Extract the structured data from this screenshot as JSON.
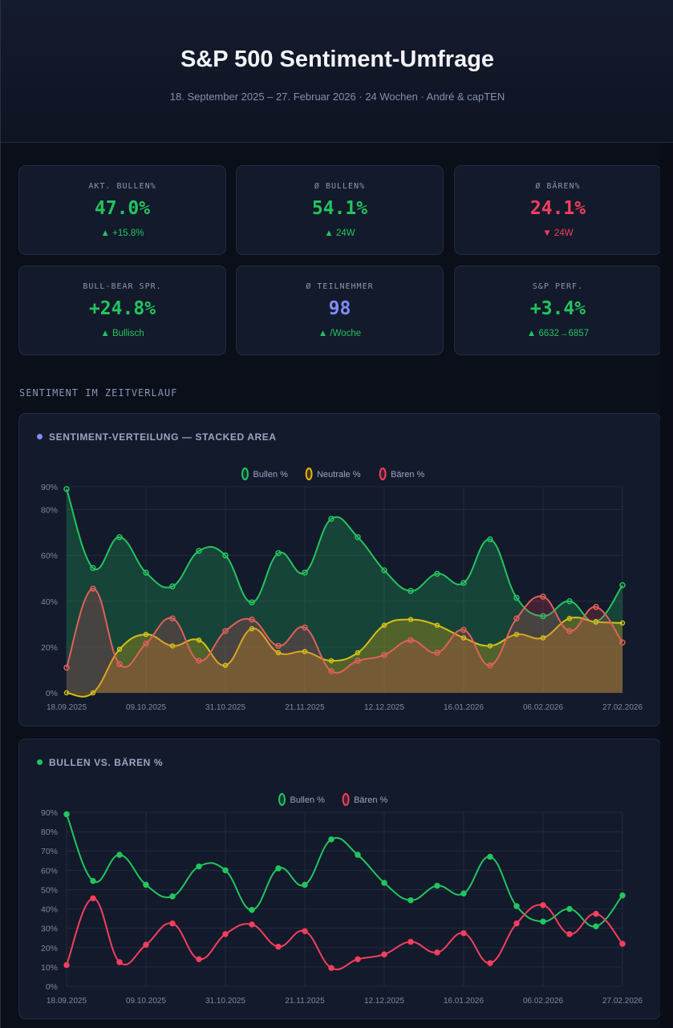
{
  "header": {
    "title": "S&P 500 Sentiment-Umfrage",
    "subtitle": "18. September 2025 – 27. Februar 2026 · 24 Wochen · André & capTEN"
  },
  "kpis": [
    {
      "label": "AKT. BULLEN%",
      "value": "47.0%",
      "sub": "▲ +15.8%",
      "color": "green"
    },
    {
      "label": "Ø BULLEN%",
      "value": "54.1%",
      "sub": "▲ 24W",
      "color": "green"
    },
    {
      "label": "Ø BÄREN%",
      "value": "24.1%",
      "sub": "▼ 24W",
      "color": "red"
    },
    {
      "label": "BULL-BEAR SPR.",
      "value": "+24.8%",
      "sub": "▲ Bullisch",
      "color": "green"
    },
    {
      "label": "Ø TEILNEHMER",
      "value": "98",
      "sub": "▲ /Woche",
      "color": "blue"
    },
    {
      "label": "S&P PERF.",
      "value": "+3.4%",
      "sub": "▲ 6632→6857",
      "color": "green"
    }
  ],
  "section_title": "SENTIMENT IM ZEITVERLAUF",
  "colors": {
    "bull": "#22c55e",
    "neutral": "#eab308",
    "bear": "#f43f5e",
    "accent": "#818cf8"
  },
  "chart_data": [
    {
      "type": "area",
      "title": "SENTIMENT-VERTEILUNG — STACKED AREA",
      "categories": [
        "18.09.2025",
        "",
        "",
        "09.10.2025",
        "",
        "",
        "31.10.2025",
        "",
        "",
        "21.11.2025",
        "",
        "",
        "12.12.2025",
        "",
        "",
        "16.01.2026",
        "",
        "",
        "06.02.2026",
        "",
        "",
        "27.02.2026"
      ],
      "ylim": [
        0,
        90
      ],
      "yticks": [
        0,
        20,
        40,
        60,
        80,
        90
      ],
      "ytick_labels": [
        "0%",
        "20%",
        "40%",
        "60%",
        "80%",
        "90%"
      ],
      "legend": "top-center",
      "grid": true,
      "series": [
        {
          "name": "Bullen %",
          "key": "bull",
          "values": [
            89,
            54.5,
            68,
            52.5,
            46.5,
            62,
            60,
            39.5,
            61,
            52.5,
            76,
            68,
            53.5,
            44.5,
            52,
            48,
            67,
            41.5,
            33.5,
            40,
            31,
            47
          ]
        },
        {
          "name": "Neutrale %",
          "key": "neutral",
          "values": [
            0,
            0,
            19,
            25.5,
            20.5,
            23,
            12,
            28,
            17.5,
            18,
            14,
            17.5,
            29.5,
            32,
            29.5,
            24,
            20.5,
            25.5,
            24,
            32.5,
            31,
            30.5
          ]
        },
        {
          "name": "Bären %",
          "key": "bear",
          "values": [
            11,
            45.5,
            12.5,
            21.5,
            32.5,
            14,
            27,
            32,
            20.5,
            28.5,
            9.5,
            14,
            16.5,
            23,
            17.5,
            27.5,
            12,
            32.5,
            42,
            27,
            37.5,
            22
          ]
        }
      ]
    },
    {
      "type": "line",
      "title": "BULLEN VS. BÄREN %",
      "categories": [
        "18.09.2025",
        "",
        "",
        "09.10.2025",
        "",
        "",
        "31.10.2025",
        "",
        "",
        "21.11.2025",
        "",
        "",
        "12.12.2025",
        "",
        "",
        "16.01.2026",
        "",
        "",
        "06.02.2026",
        "",
        "",
        "27.02.2026"
      ],
      "ylim": [
        0,
        90
      ],
      "yticks": [
        0,
        10,
        20,
        30,
        40,
        50,
        60,
        70,
        80,
        90
      ],
      "ytick_labels": [
        "0%",
        "10%",
        "20%",
        "30%",
        "40%",
        "50%",
        "60%",
        "70%",
        "80%",
        "90%"
      ],
      "legend": "top-center",
      "grid": true,
      "series": [
        {
          "name": "Bullen %",
          "key": "bull",
          "values": [
            89,
            54.5,
            68,
            52.5,
            46.5,
            62,
            60,
            39.5,
            61,
            52.5,
            76,
            68,
            53.5,
            44.5,
            52,
            48,
            67,
            41.5,
            33.5,
            40,
            31,
            47
          ]
        },
        {
          "name": "Bären %",
          "key": "bear",
          "values": [
            11,
            45.5,
            12.5,
            21.5,
            32.5,
            14,
            27,
            32,
            20.5,
            28.5,
            9.5,
            14,
            16.5,
            23,
            17.5,
            27.5,
            12,
            32.5,
            42,
            27,
            37.5,
            22
          ]
        }
      ]
    }
  ]
}
